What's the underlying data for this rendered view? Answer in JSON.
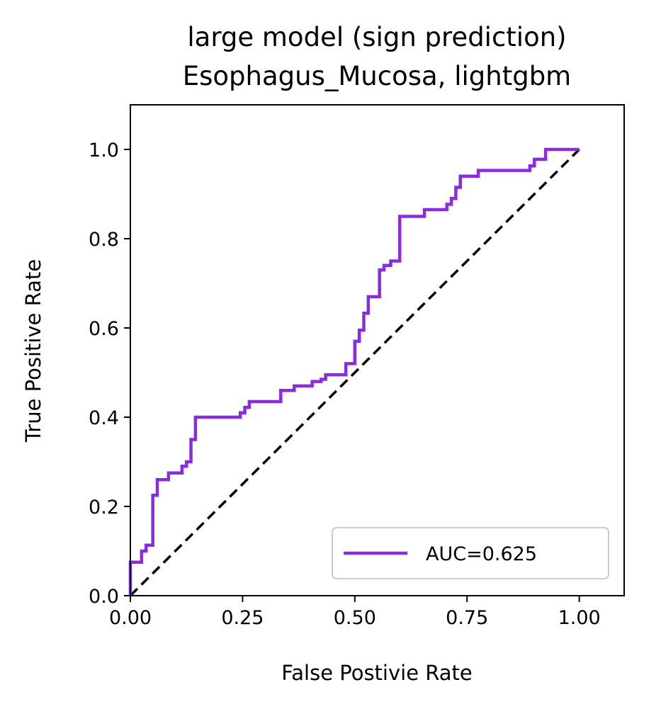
{
  "chart_data": {
    "type": "line",
    "title": [
      "large model (sign prediction)",
      "Esophagus_Mucosa, lightgbm"
    ],
    "xlabel": "False Postivie Rate",
    "ylabel": "True Positive Rate",
    "xlim": [
      0,
      1.1
    ],
    "ylim": [
      0,
      1.1
    ],
    "xticks": [
      0,
      0.25,
      0.5,
      0.75,
      1.0
    ],
    "xtick_labels": [
      "0.00",
      "0.25",
      "0.50",
      "0.75",
      "1.00"
    ],
    "yticks": [
      0,
      0.2,
      0.4,
      0.6,
      0.8,
      1.0
    ],
    "ytick_labels": [
      "0.0",
      "0.2",
      "0.4",
      "0.6",
      "0.8",
      "1.0"
    ],
    "grid": false,
    "legend": {
      "position": "lower-right",
      "entries": [
        "AUC=0.625"
      ]
    },
    "series": [
      {
        "name": "AUC=0.625",
        "color": "#8a2be2",
        "style": "step",
        "x": [
          0.0,
          0.0,
          0.025,
          0.025,
          0.035,
          0.035,
          0.05,
          0.05,
          0.06,
          0.06,
          0.085,
          0.085,
          0.115,
          0.115,
          0.125,
          0.125,
          0.135,
          0.135,
          0.145,
          0.145,
          0.245,
          0.245,
          0.255,
          0.255,
          0.265,
          0.265,
          0.335,
          0.335,
          0.365,
          0.365,
          0.405,
          0.405,
          0.425,
          0.425,
          0.435,
          0.435,
          0.48,
          0.48,
          0.5,
          0.5,
          0.51,
          0.51,
          0.52,
          0.52,
          0.53,
          0.53,
          0.555,
          0.555,
          0.565,
          0.565,
          0.58,
          0.58,
          0.6,
          0.6,
          0.655,
          0.655,
          0.705,
          0.705,
          0.715,
          0.715,
          0.725,
          0.725,
          0.735,
          0.735,
          0.775,
          0.775,
          0.89,
          0.89,
          0.9,
          0.9,
          0.925,
          0.925,
          1.0
        ],
        "y": [
          0.0,
          0.075,
          0.075,
          0.1,
          0.1,
          0.113,
          0.113,
          0.225,
          0.225,
          0.26,
          0.26,
          0.275,
          0.275,
          0.29,
          0.29,
          0.3,
          0.3,
          0.35,
          0.35,
          0.4,
          0.4,
          0.41,
          0.41,
          0.422,
          0.422,
          0.435,
          0.435,
          0.46,
          0.46,
          0.47,
          0.47,
          0.48,
          0.48,
          0.485,
          0.485,
          0.495,
          0.495,
          0.52,
          0.52,
          0.57,
          0.57,
          0.595,
          0.595,
          0.633,
          0.633,
          0.67,
          0.67,
          0.73,
          0.73,
          0.74,
          0.74,
          0.75,
          0.75,
          0.85,
          0.85,
          0.865,
          0.865,
          0.877,
          0.877,
          0.89,
          0.89,
          0.915,
          0.915,
          0.94,
          0.94,
          0.953,
          0.953,
          0.963,
          0.963,
          0.978,
          0.978,
          1.0,
          1.0
        ]
      }
    ],
    "reference_line": {
      "x": [
        0,
        1
      ],
      "y": [
        0,
        1
      ],
      "color": "#000000",
      "style": "dashed"
    }
  }
}
